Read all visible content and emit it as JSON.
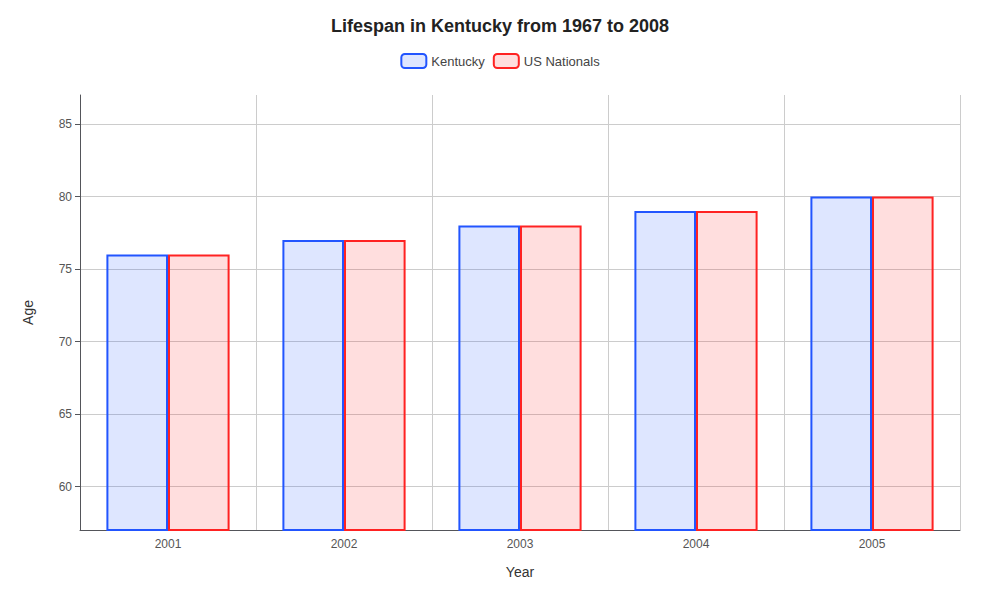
{
  "chart_data": {
    "type": "bar",
    "title": "Lifespan in Kentucky from 1967 to 2008",
    "xlabel": "Year",
    "ylabel": "Age",
    "categories": [
      "2001",
      "2002",
      "2003",
      "2004",
      "2005"
    ],
    "series": [
      {
        "name": "Kentucky",
        "color": "#2255ff",
        "values": [
          76,
          77,
          78,
          79,
          80
        ]
      },
      {
        "name": "US Nationals",
        "color": "#ff2222",
        "values": [
          76,
          77,
          78,
          79,
          80
        ]
      }
    ],
    "ylim": [
      57,
      87
    ],
    "yticks": [
      60,
      65,
      70,
      75,
      80,
      85
    ],
    "grid": true,
    "legend": "top"
  }
}
